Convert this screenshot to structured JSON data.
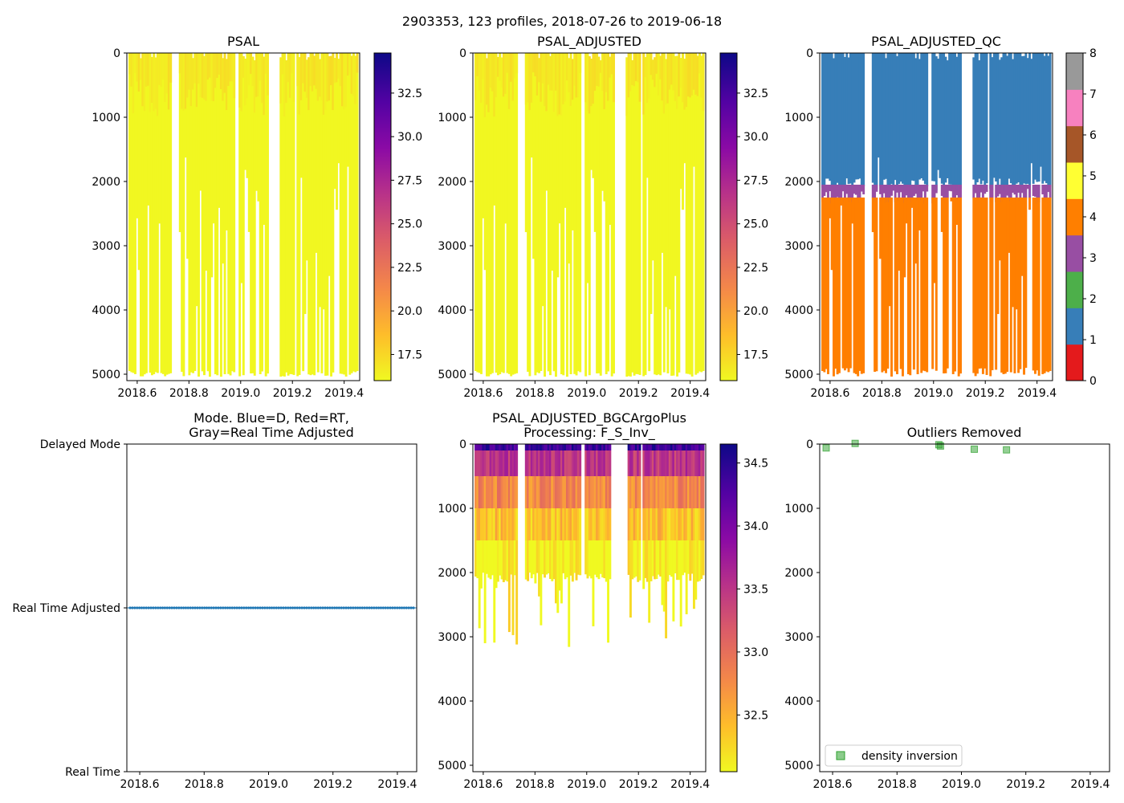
{
  "figure": {
    "suptitle": "2903353, 123 profiles, 2018-07-26 to 2019-06-18"
  },
  "colors": {
    "plasma": [
      "#0d0887",
      "#5302a3",
      "#8b0aa5",
      "#b83289",
      "#db5c68",
      "#f48849",
      "#febd2a",
      "#f0f921"
    ],
    "qc": [
      "#e41a1c",
      "#377eb8",
      "#4daf4a",
      "#984ea3",
      "#ff7f00",
      "#ffff33",
      "#a65628",
      "#f781bf",
      "#999999"
    ],
    "mode_line": "#1f77b4",
    "outlier_marker": "#2ca02c"
  },
  "chart_data": [
    {
      "id": "psal",
      "type": "heatmap",
      "title": "PSAL",
      "xlim": [
        2018.56,
        2019.46
      ],
      "ylim": [
        5100,
        0
      ],
      "xticks": [
        "2018.6",
        "2018.8",
        "2019.0",
        "2019.2",
        "2019.4"
      ],
      "xtick_values": [
        2018.6,
        2018.8,
        2019.0,
        2019.2,
        2019.4
      ],
      "yticks": [
        "0",
        "1000",
        "2000",
        "3000",
        "4000",
        "5000"
      ],
      "ytick_values": [
        0,
        1000,
        2000,
        3000,
        4000,
        5000
      ],
      "colorbar": {
        "range": [
          16.0,
          34.8
        ],
        "ticks": [
          "17.5",
          "20.0",
          "22.5",
          "25.0",
          "27.5",
          "30.0",
          "32.5"
        ],
        "tick_values": [
          17.5,
          20.0,
          22.5,
          25.0,
          27.5,
          30.0,
          32.5
        ]
      }
    },
    {
      "id": "psal_adjusted",
      "type": "heatmap",
      "title": "PSAL_ADJUSTED",
      "xlim": [
        2018.56,
        2019.46
      ],
      "ylim": [
        5100,
        0
      ],
      "xticks": [
        "2018.6",
        "2018.8",
        "2019.0",
        "2019.2",
        "2019.4"
      ],
      "xtick_values": [
        2018.6,
        2018.8,
        2019.0,
        2019.2,
        2019.4
      ],
      "yticks": [
        "0",
        "1000",
        "2000",
        "3000",
        "4000",
        "5000"
      ],
      "ytick_values": [
        0,
        1000,
        2000,
        3000,
        4000,
        5000
      ],
      "colorbar": {
        "range": [
          16.0,
          34.8
        ],
        "ticks": [
          "17.5",
          "20.0",
          "22.5",
          "25.0",
          "27.5",
          "30.0",
          "32.5"
        ],
        "tick_values": [
          17.5,
          20.0,
          22.5,
          25.0,
          27.5,
          30.0,
          32.5
        ]
      }
    },
    {
      "id": "psal_adjusted_qc",
      "type": "heatmap",
      "title": "PSAL_ADJUSTED_QC",
      "xlim": [
        2018.56,
        2019.46
      ],
      "ylim": [
        5100,
        0
      ],
      "xticks": [
        "2018.6",
        "2018.8",
        "2019.0",
        "2019.2",
        "2019.4"
      ],
      "xtick_values": [
        2018.6,
        2018.8,
        2019.0,
        2019.2,
        2019.4
      ],
      "yticks": [
        "0",
        "1000",
        "2000",
        "3000",
        "4000",
        "5000"
      ],
      "ytick_values": [
        0,
        1000,
        2000,
        3000,
        4000,
        5000
      ],
      "colorbar": {
        "range": [
          0,
          8
        ],
        "ticks": [
          "0",
          "1",
          "2",
          "3",
          "4",
          "5",
          "6",
          "7",
          "8"
        ],
        "tick_values": [
          0,
          1,
          2,
          3,
          4,
          5,
          6,
          7,
          8
        ]
      },
      "qc_layers": [
        {
          "qc": 1,
          "from_depth": 0,
          "to_depth": 2050
        },
        {
          "qc": 3,
          "from_depth": 2050,
          "to_depth": 2250
        },
        {
          "qc": 4,
          "from_depth": 2250,
          "to_depth": 5000
        }
      ]
    },
    {
      "id": "mode",
      "type": "scatter",
      "title_lines": [
        "Mode. Blue=D, Red=RT,",
        "Gray=Real Time Adjusted"
      ],
      "xlim": [
        2018.56,
        2019.46
      ],
      "xticks": [
        "2018.6",
        "2018.8",
        "2019.0",
        "2019.2",
        "2019.4"
      ],
      "xtick_values": [
        2018.6,
        2018.8,
        2019.0,
        2019.2,
        2019.4
      ],
      "yticks": [
        "Delayed Mode",
        "Real Time Adjusted",
        "Real Time"
      ],
      "ytick_values": [
        2,
        1,
        0
      ],
      "ylim": [
        0,
        2
      ],
      "series": [
        {
          "name": "mode",
          "level": 1,
          "count": 123
        }
      ]
    },
    {
      "id": "bgc",
      "type": "heatmap",
      "title_lines": [
        "PSAL_ADJUSTED_BGCArgoPlus",
        "Processing: F_S_Inv_"
      ],
      "xlim": [
        2018.56,
        2019.46
      ],
      "ylim": [
        5100,
        0
      ],
      "xticks": [
        "2018.6",
        "2018.8",
        "2019.0",
        "2019.2",
        "2019.4"
      ],
      "xtick_values": [
        2018.6,
        2018.8,
        2019.0,
        2019.2,
        2019.4
      ],
      "yticks": [
        "0",
        "1000",
        "2000",
        "3000",
        "4000",
        "5000"
      ],
      "ytick_values": [
        0,
        1000,
        2000,
        3000,
        4000,
        5000
      ],
      "colorbar": {
        "range": [
          32.05,
          34.65
        ],
        "ticks": [
          "32.5",
          "33.0",
          "33.5",
          "34.0",
          "34.5"
        ],
        "tick_values": [
          32.5,
          33.0,
          33.5,
          34.0,
          34.5
        ]
      }
    },
    {
      "id": "outliers",
      "type": "scatter",
      "title": "Outliers Removed",
      "xlim": [
        2018.56,
        2019.46
      ],
      "ylim": [
        5100,
        0
      ],
      "xticks": [
        "2018.6",
        "2018.8",
        "2019.0",
        "2019.2",
        "2019.4"
      ],
      "xtick_values": [
        2018.6,
        2018.8,
        2019.0,
        2019.2,
        2019.4
      ],
      "yticks": [
        "0",
        "1000",
        "2000",
        "3000",
        "4000",
        "5000"
      ],
      "ytick_values": [
        0,
        1000,
        2000,
        3000,
        4000,
        5000
      ],
      "legend": {
        "label": "density inversion",
        "placement": "lower-left"
      },
      "series": [
        {
          "name": "density inversion",
          "x": [
            2018.58,
            2018.67,
            2018.93,
            2018.935,
            2019.04,
            2019.14
          ],
          "y": [
            60,
            -10,
            10,
            30,
            80,
            90
          ]
        }
      ]
    }
  ]
}
